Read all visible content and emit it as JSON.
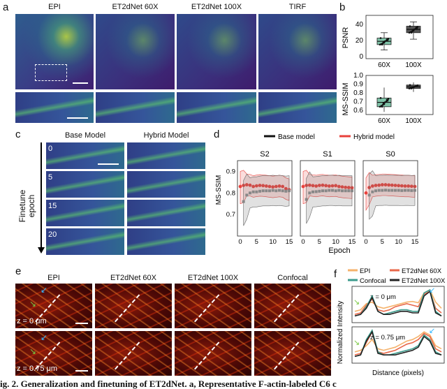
{
  "panels": {
    "a": "a",
    "b": "b",
    "c": "c",
    "d": "d",
    "e": "e",
    "f": "f"
  },
  "panel_a": {
    "titles": [
      "EPI",
      "ET2dNet 60X",
      "ET2dNet 100X",
      "TIRF"
    ]
  },
  "panel_b": {
    "psnr_ylabel": "PSNR",
    "ssim_ylabel": "MS-SSIM",
    "categories": [
      "60X",
      "100X"
    ],
    "psnr_ticks": [
      "0",
      "20",
      "40"
    ],
    "ssim_ticks": [
      "0.6",
      "0.7",
      "0.8",
      "0.9",
      "1.0"
    ]
  },
  "panel_c": {
    "titles": [
      "Base Model",
      "Hybrid Model"
    ],
    "epochs": [
      "0",
      "5",
      "15",
      "20"
    ],
    "ylabel_1": "Finetune",
    "ylabel_2": "epoch"
  },
  "panel_d": {
    "legend": [
      {
        "label": "Base model",
        "color": "#111111"
      },
      {
        "label": "Hybrid model",
        "color": "#e8413c"
      }
    ],
    "subtitles": [
      "S2",
      "S1",
      "S0"
    ],
    "ylabel": "MS-SSIM",
    "xlabel": "Epoch",
    "yticks": [
      "0.7",
      "0.8",
      "0.9"
    ],
    "xticks": [
      "0",
      "5",
      "10",
      "15"
    ]
  },
  "panel_e": {
    "titles": [
      "EPI",
      "ET2dNet 60X",
      "ET2dNet 100X",
      "Confocal"
    ],
    "rows": [
      "z = 0 μm",
      "z = 0.75 μm"
    ]
  },
  "panel_f": {
    "legend": [
      {
        "label": "EPI",
        "color": "#f5b26b"
      },
      {
        "label": "ET2dNet 60X",
        "color": "#e8684a"
      },
      {
        "label": "Confocal",
        "color": "#3b9b8c"
      },
      {
        "label": "ET2dNet 100X",
        "color": "#222222"
      }
    ],
    "plot_labels": [
      "z = 0 μm",
      "z = 0.75 μm"
    ],
    "ylabel": "Normalized Intensity",
    "xlabel": "Distance (pixels)"
  },
  "caption": "ig. 2. Generalization and finetuning of ET2dNet. a, Representative F-actin-labeled C6 c",
  "chart_data": [
    {
      "type": "box",
      "title": "",
      "ylabel": "PSNR",
      "categories": [
        "60X",
        "100X"
      ],
      "ylim": [
        0,
        40
      ],
      "series": [
        {
          "category": "60X",
          "min": 8,
          "q1": 13,
          "median": 16,
          "q3": 19,
          "max": 24
        },
        {
          "category": "100X",
          "min": 18,
          "q1": 24,
          "median": 27,
          "q3": 30,
          "max": 34
        }
      ]
    },
    {
      "type": "box",
      "title": "",
      "ylabel": "MS-SSIM",
      "categories": [
        "60X",
        "100X"
      ],
      "ylim": [
        0.55,
        1.0
      ],
      "series": [
        {
          "category": "60X",
          "min": 0.58,
          "q1": 0.64,
          "median": 0.69,
          "q3": 0.74,
          "max": 0.86
        },
        {
          "category": "100X",
          "min": 0.81,
          "q1": 0.85,
          "median": 0.87,
          "q3": 0.89,
          "max": 0.92
        }
      ]
    },
    {
      "type": "line",
      "xlabel": "Epoch",
      "ylabel": "MS-SSIM",
      "ylim": [
        0.6,
        0.95
      ],
      "xlim": [
        0,
        15
      ],
      "subplots": [
        {
          "title": "S2",
          "series": [
            {
              "name": "Hybrid model",
              "x": [
                0,
                1,
                2,
                3,
                4,
                5,
                6,
                7,
                8,
                9,
                10,
                11,
                12,
                13,
                14,
                15
              ],
              "y": [
                0.83,
                0.835,
                0.838,
                0.836,
                0.83,
                0.833,
                0.835,
                0.834,
                0.832,
                0.83,
                0.828,
                0.83,
                0.832,
                0.83,
                0.82,
                0.815
              ]
            },
            {
              "name": "Base model",
              "x": [
                1,
                2,
                3,
                4,
                5,
                6,
                7,
                8,
                9,
                10,
                11,
                12,
                13,
                14,
                15
              ],
              "y": [
                0.76,
                0.79,
                0.8,
                0.805,
                0.805,
                0.808,
                0.81,
                0.81,
                0.81,
                0.812,
                0.81,
                0.812,
                0.81,
                0.808,
                0.81
              ]
            }
          ]
        },
        {
          "title": "S1",
          "series": [
            {
              "name": "Hybrid model",
              "x": [
                0,
                1,
                2,
                3,
                4,
                5,
                6,
                7,
                8,
                9,
                10,
                11,
                12,
                13,
                14,
                15
              ],
              "y": [
                0.83,
                0.835,
                0.836,
                0.834,
                0.832,
                0.835,
                0.836,
                0.834,
                0.832,
                0.833,
                0.834,
                0.83,
                0.828,
                0.826,
                0.825,
                0.824
              ]
            },
            {
              "name": "Base model",
              "x": [
                1,
                2,
                3,
                4,
                5,
                6,
                7,
                8,
                9,
                10,
                11,
                12,
                13,
                14,
                15
              ],
              "y": [
                0.77,
                0.8,
                0.805,
                0.806,
                0.808,
                0.81,
                0.81,
                0.812,
                0.812,
                0.81,
                0.812,
                0.81,
                0.81,
                0.81,
                0.81
              ]
            }
          ]
        },
        {
          "title": "S0",
          "series": [
            {
              "name": "Hybrid model",
              "x": [
                0,
                1,
                2,
                3,
                4,
                5,
                6,
                7,
                8,
                9,
                10,
                11,
                12,
                13,
                14,
                15
              ],
              "y": [
                0.8,
                0.825,
                0.832,
                0.835,
                0.836,
                0.838,
                0.838,
                0.837,
                0.836,
                0.835,
                0.834,
                0.833,
                0.832,
                0.832,
                0.831,
                0.83
              ]
            },
            {
              "name": "Base model",
              "x": [
                1,
                2,
                3,
                4,
                5,
                6,
                7,
                8,
                9,
                10,
                11,
                12,
                13,
                14,
                15
              ],
              "y": [
                0.79,
                0.805,
                0.81,
                0.812,
                0.812,
                0.813,
                0.812,
                0.812,
                0.812,
                0.812,
                0.811,
                0.812,
                0.812,
                0.811,
                0.812
              ]
            }
          ]
        }
      ]
    },
    {
      "type": "line",
      "xlabel": "Distance (pixels)",
      "ylabel": "Normalized Intensity",
      "subplots": [
        {
          "title": "z = 0 μm",
          "series": [
            {
              "name": "EPI",
              "y": [
                0.3,
                0.35,
                0.55,
                0.6,
                0.45,
                0.4,
                0.45,
                0.5,
                0.55,
                0.6,
                0.62,
                0.58,
                0.9,
                1.0,
                0.6,
                0.4
              ]
            },
            {
              "name": "ET2dNet 60X",
              "y": [
                0.2,
                0.25,
                0.5,
                0.7,
                0.35,
                0.3,
                0.35,
                0.45,
                0.5,
                0.55,
                0.5,
                0.45,
                0.85,
                0.95,
                0.4,
                0.25
              ]
            },
            {
              "name": "Confocal",
              "y": [
                0.15,
                0.2,
                0.45,
                0.8,
                0.3,
                0.2,
                0.25,
                0.3,
                0.35,
                0.35,
                0.3,
                0.3,
                0.9,
                1.0,
                0.3,
                0.15
              ]
            },
            {
              "name": "ET2dNet 100X",
              "y": [
                0.15,
                0.2,
                0.4,
                0.75,
                0.3,
                0.2,
                0.2,
                0.25,
                0.3,
                0.3,
                0.25,
                0.25,
                0.8,
                0.95,
                0.25,
                0.15
              ]
            }
          ]
        },
        {
          "title": "z = 0.75 μm",
          "series": [
            {
              "name": "EPI",
              "y": [
                0.3,
                0.35,
                0.5,
                0.7,
                0.4,
                0.35,
                0.4,
                0.45,
                0.55,
                0.65,
                0.7,
                0.8,
                0.95,
                0.85,
                0.5,
                0.4
              ]
            },
            {
              "name": "ET2dNet 60X",
              "y": [
                0.2,
                0.25,
                0.6,
                0.95,
                0.3,
                0.25,
                0.3,
                0.35,
                0.45,
                0.55,
                0.6,
                0.7,
                0.9,
                0.8,
                0.4,
                0.3
              ]
            },
            {
              "name": "Confocal",
              "y": [
                0.15,
                0.2,
                0.7,
                1.0,
                0.3,
                0.2,
                0.2,
                0.25,
                0.3,
                0.35,
                0.4,
                0.5,
                0.85,
                0.7,
                0.3,
                0.2
              ]
            },
            {
              "name": "ET2dNet 100X",
              "y": [
                0.15,
                0.2,
                0.65,
                0.95,
                0.25,
                0.2,
                0.2,
                0.2,
                0.25,
                0.3,
                0.35,
                0.45,
                0.8,
                0.65,
                0.25,
                0.2
              ]
            }
          ]
        }
      ]
    }
  ]
}
